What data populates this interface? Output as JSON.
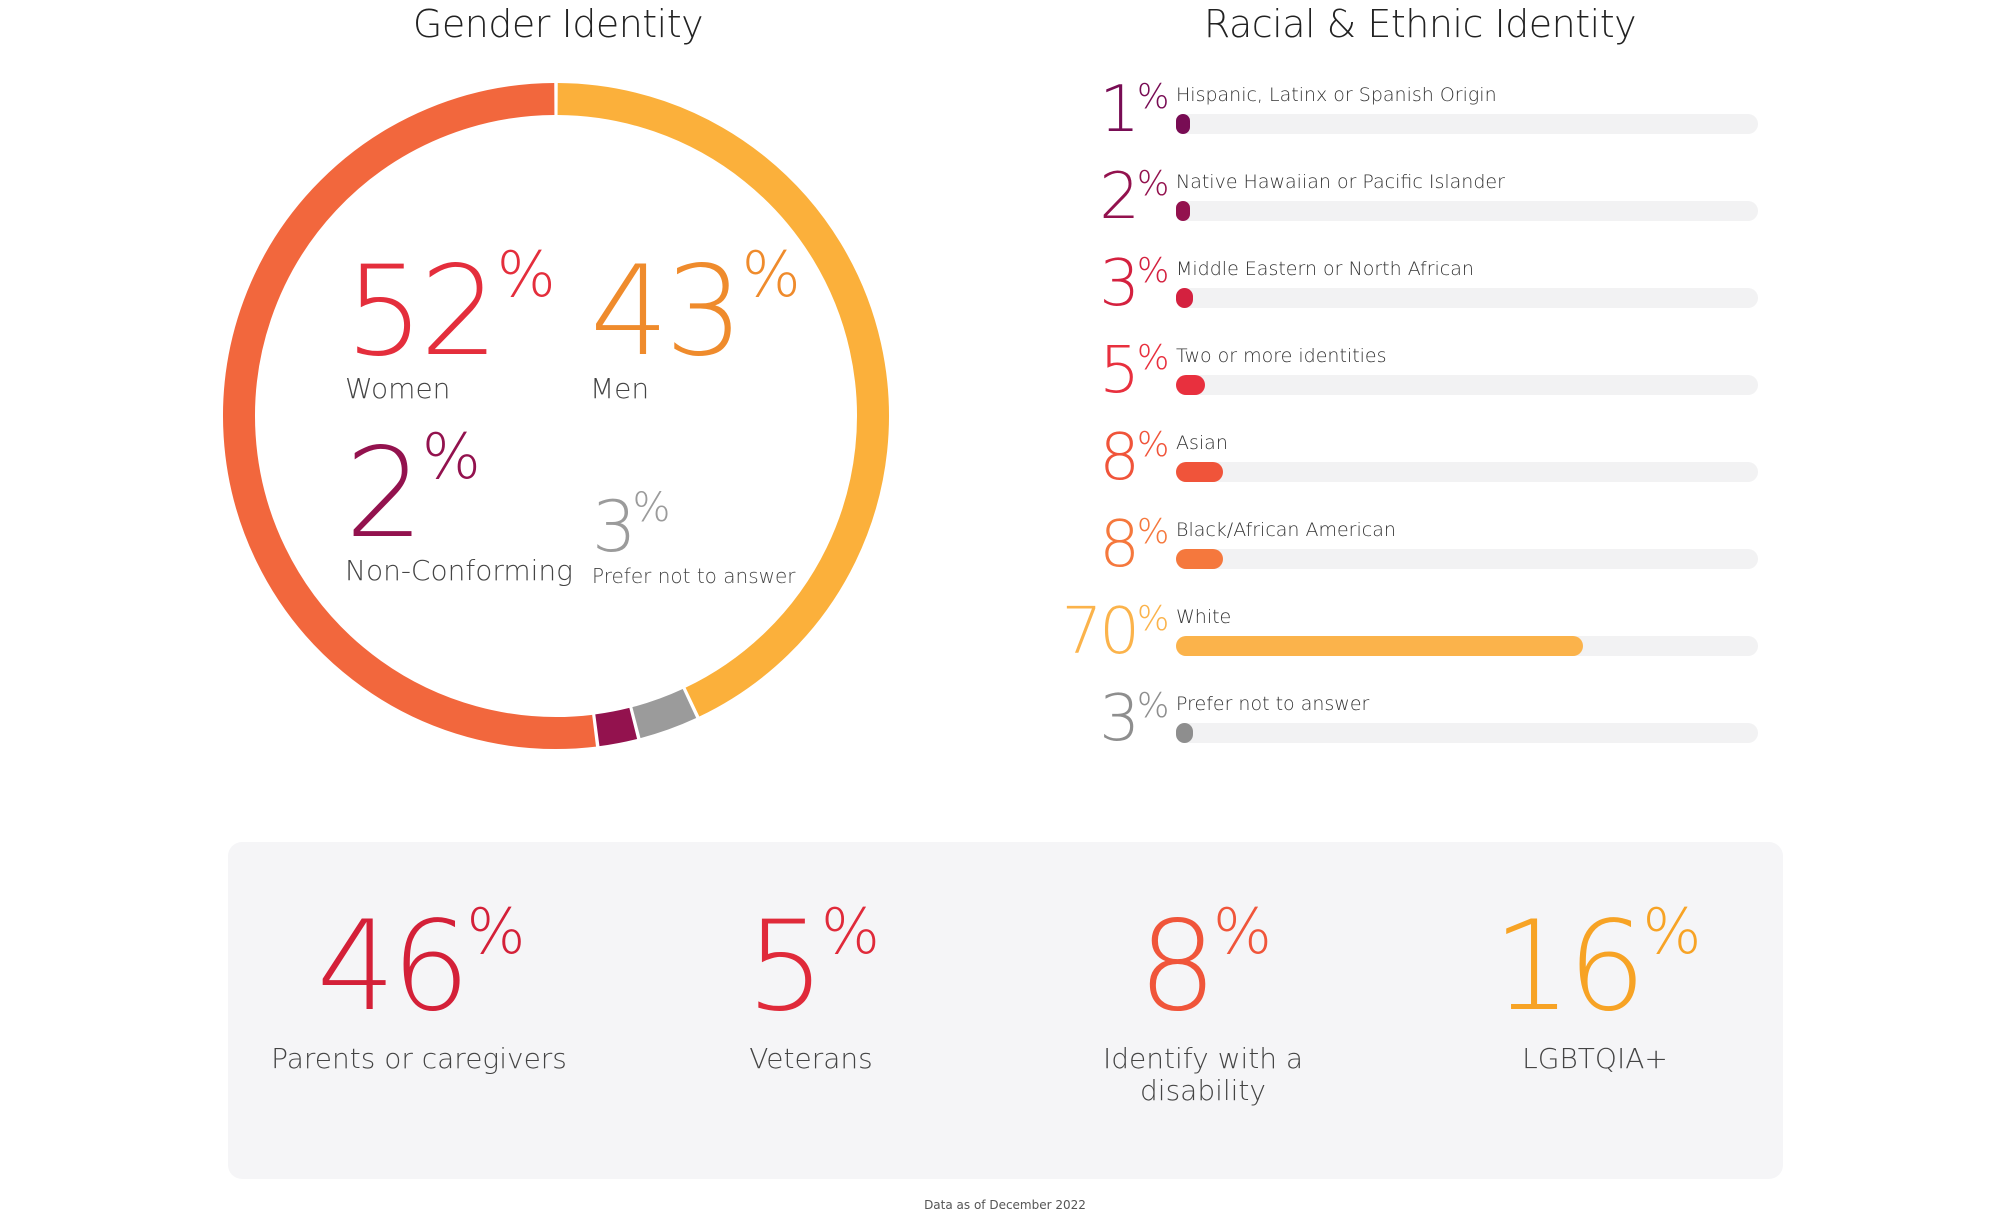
{
  "gender": {
    "title": "Gender Identity",
    "women": {
      "value": "52",
      "label": "Women"
    },
    "men": {
      "value": "43",
      "label": "Men"
    },
    "nonconforming": {
      "value": "2",
      "label": "Non-Conforming"
    },
    "prefer": {
      "value": "3",
      "label": "Prefer not to answer"
    },
    "percent_sign": "%"
  },
  "race": {
    "title": "Racial & Ethnic Identity",
    "percent_sign": "%",
    "rows": [
      {
        "value": "1",
        "label": "Hispanic, Latinx or Spanish Origin"
      },
      {
        "value": "2",
        "label": "Native Hawaiian or Pacific Islander"
      },
      {
        "value": "3",
        "label": "Middle Eastern or North African"
      },
      {
        "value": "5",
        "label": "Two or more identities"
      },
      {
        "value": "8",
        "label": "Asian"
      },
      {
        "value": "8",
        "label": "Black/African American"
      },
      {
        "value": "70",
        "label": "White"
      },
      {
        "value": "3",
        "label": "Prefer not to answer"
      }
    ]
  },
  "bottom": {
    "percent_sign": "%",
    "parents": {
      "value": "46",
      "label": "Parents or caregivers"
    },
    "veterans": {
      "value": "5",
      "label": "Veterans"
    },
    "disability": {
      "value": "8",
      "label": "Identify with a disability"
    },
    "lgbtqia": {
      "value": "16",
      "label": "LGBTQIA+"
    }
  },
  "footnote": "Data as of December 2022",
  "chart_data": [
    {
      "type": "pie",
      "title": "Gender Identity",
      "categories": [
        "Women",
        "Men",
        "Non-Conforming",
        "Prefer not to answer"
      ],
      "values": [
        52,
        43,
        2,
        3
      ],
      "colors": [
        "#f2673d",
        "#fbb03b",
        "#93124e",
        "#9b9b9b"
      ],
      "donut": true
    },
    {
      "type": "bar",
      "orientation": "horizontal",
      "title": "Racial & Ethnic Identity",
      "categories": [
        "Hispanic, Latinx or Spanish Origin",
        "Native Hawaiian or Pacific Islander",
        "Middle Eastern or North African",
        "Two or more identities",
        "Asian",
        "Black/African American",
        "White",
        "Prefer not to answer"
      ],
      "values": [
        1,
        2,
        3,
        5,
        8,
        8,
        70,
        3
      ],
      "xlim": [
        0,
        100
      ],
      "colors": [
        "#780c54",
        "#93124e",
        "#d4213f",
        "#e8303e",
        "#f0543a",
        "#f5783d",
        "#fbb34b",
        "#8e8e8e"
      ]
    }
  ],
  "colors": {
    "women": "#e42e3c",
    "men": "#ef8b2c",
    "nonconforming": "#93124e",
    "prefer": "#9b9b9b",
    "parents": "#d42038",
    "veterans": "#e02a3a",
    "disability": "#f0553a",
    "lgbtqia": "#f7a325"
  }
}
